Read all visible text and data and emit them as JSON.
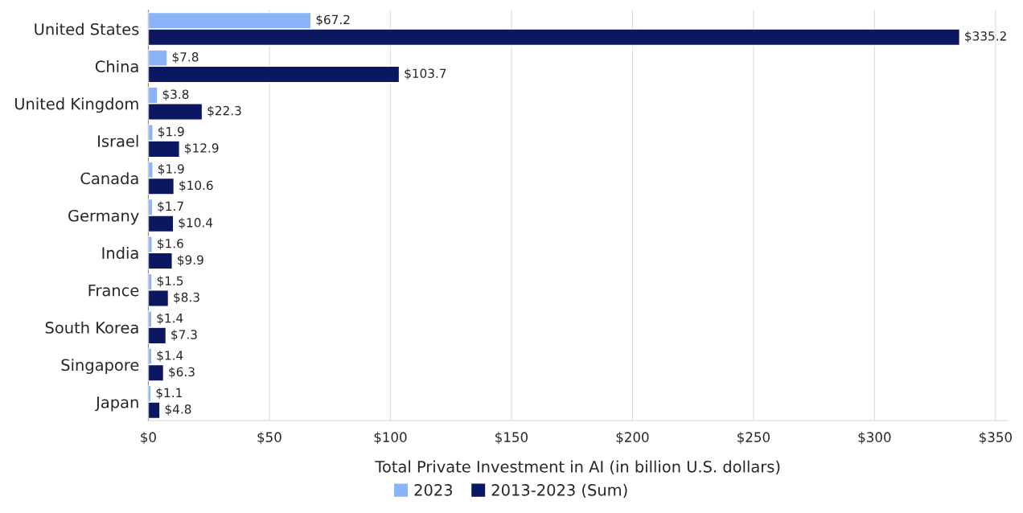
{
  "chart_data": {
    "type": "bar",
    "orientation": "horizontal",
    "xlabel": "Total Private Investment in AI (in billion U.S. dollars)",
    "categories": [
      "United States",
      "China",
      "United Kingdom",
      "Israel",
      "Canada",
      "Germany",
      "India",
      "France",
      "South Korea",
      "Singapore",
      "Japan"
    ],
    "series": [
      {
        "name": "2023",
        "color": "#8ab4f8",
        "values": [
          67.2,
          7.8,
          3.8,
          1.9,
          1.9,
          1.7,
          1.6,
          1.5,
          1.4,
          1.4,
          1.1
        ],
        "value_labels": [
          "$67.2",
          "$7.8",
          "$3.8",
          "$1.9",
          "$1.9",
          "$1.7",
          "$1.6",
          "$1.5",
          "$1.4",
          "$1.4",
          "$1.1"
        ]
      },
      {
        "name": "2013-2023 (Sum)",
        "color": "#0b1760",
        "values": [
          335.2,
          103.7,
          22.3,
          12.9,
          10.6,
          10.4,
          9.9,
          8.3,
          7.3,
          6.3,
          4.8
        ],
        "value_labels": [
          "$335.2",
          "$103.7",
          "$22.3",
          "$12.9",
          "$10.6",
          "$10.4",
          "$9.9",
          "$8.3",
          "$7.3",
          "$6.3",
          "$4.8"
        ]
      }
    ],
    "xlim": [
      0,
      355
    ],
    "xticks": [
      {
        "value": 0,
        "label": "$0"
      },
      {
        "value": 50,
        "label": "$50"
      },
      {
        "value": 100,
        "label": "$100"
      },
      {
        "value": 150,
        "label": "$150"
      },
      {
        "value": 200,
        "label": "$200"
      },
      {
        "value": 250,
        "label": "$250"
      },
      {
        "value": 300,
        "label": "$300"
      },
      {
        "value": 350,
        "label": "$350"
      }
    ],
    "grid": "x",
    "legend": "bottom"
  }
}
